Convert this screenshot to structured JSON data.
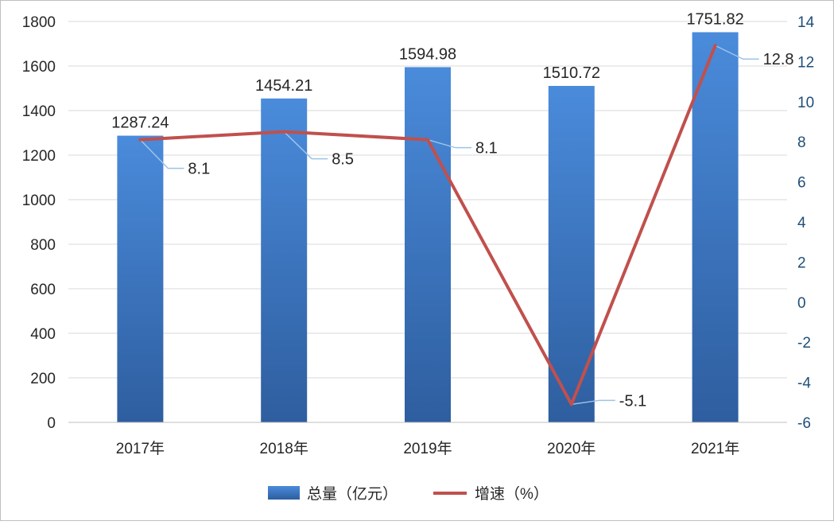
{
  "chart_data": {
    "type": "bar",
    "categories": [
      "2017年",
      "2018年",
      "2019年",
      "2020年",
      "2021年"
    ],
    "series": [
      {
        "name": "总量（亿元）",
        "type": "bar",
        "axis": "left",
        "values": [
          1287.24,
          1454.21,
          1594.98,
          1510.72,
          1751.82
        ],
        "labels": [
          "1287.24",
          "1454.21",
          "1594.98",
          "1510.72",
          "1751.82"
        ],
        "color_top": "#4A8BDB",
        "color_bottom": "#2E5E9F"
      },
      {
        "name": "增速（%）",
        "type": "line",
        "axis": "right",
        "values": [
          8.1,
          8.5,
          8.1,
          -5.1,
          12.8
        ],
        "labels": [
          "8.1",
          "8.5",
          "8.1",
          "-5.1",
          "12.8"
        ],
        "color": "#C0504D"
      }
    ],
    "y_left": {
      "min": 0,
      "max": 1800,
      "ticks": [
        0,
        200,
        400,
        600,
        800,
        1000,
        1200,
        1400,
        1600,
        1800
      ],
      "tick_labels": [
        "0",
        "200",
        "400",
        "600",
        "800",
        "1000",
        "1200",
        "1400",
        "1600",
        "1800"
      ]
    },
    "y_right": {
      "min": -6,
      "max": 14,
      "ticks": [
        -6,
        -4,
        -2,
        0,
        2,
        4,
        6,
        8,
        10,
        12,
        14
      ],
      "tick_labels": [
        "-6",
        "-4",
        "-2",
        "0",
        "2",
        "4",
        "6",
        "8",
        "10",
        "12",
        "14"
      ],
      "tick_color": "#1F4E79"
    },
    "grid": true,
    "grid_color": "#D9D9D9",
    "legend_position": "bottom",
    "leader_line_color": "#9DC3E6"
  }
}
